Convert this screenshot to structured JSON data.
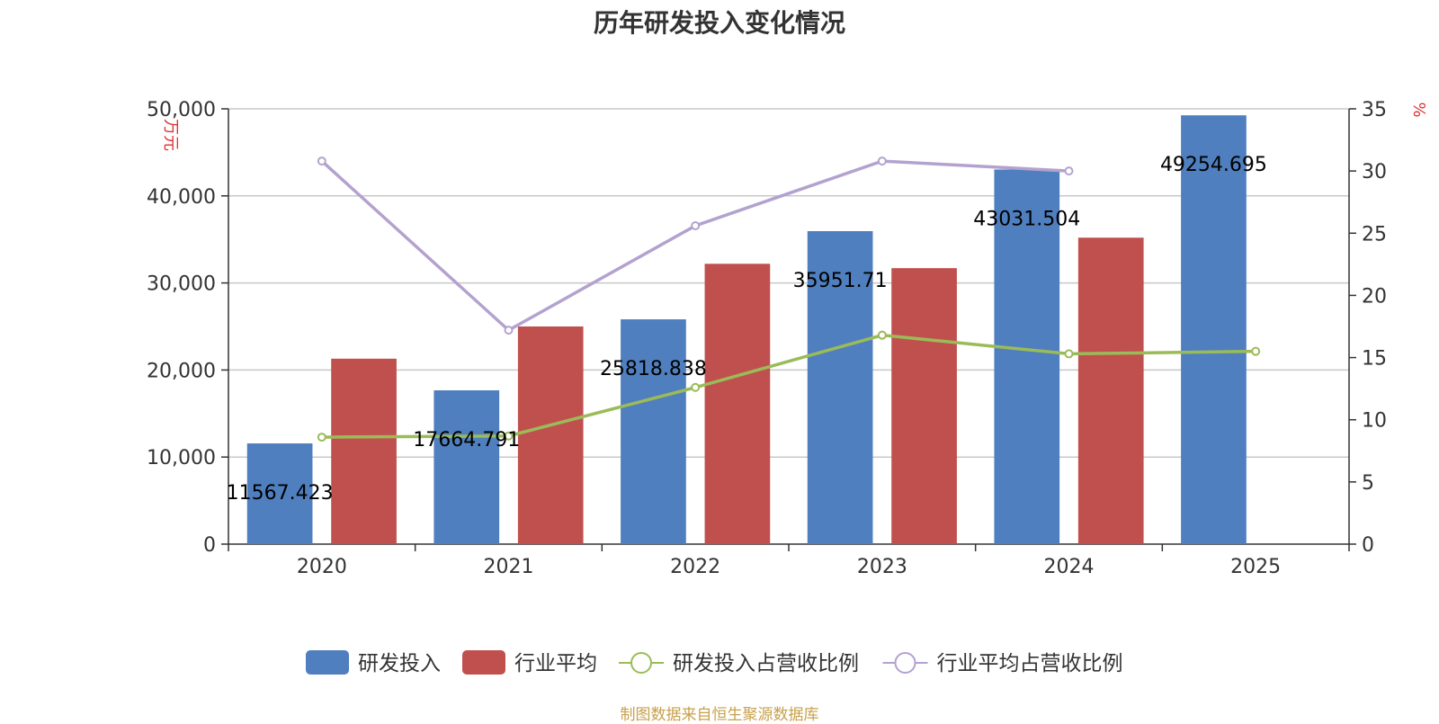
{
  "chart_data": {
    "type": "bar",
    "title": "历年研发投入变化情况",
    "categories": [
      "2020",
      "2021",
      "2022",
      "2023",
      "2024",
      "2025"
    ],
    "left_axis": {
      "unit": "万元",
      "ylim": [
        0,
        50000
      ],
      "ticks": [
        "0",
        "10,000",
        "20,000",
        "30,000",
        "40,000",
        "50,000"
      ]
    },
    "right_axis": {
      "unit": "%",
      "ylim": [
        0,
        35
      ],
      "ticks": [
        "0",
        "5",
        "10",
        "15",
        "20",
        "25",
        "30",
        "35"
      ]
    },
    "series": [
      {
        "name": "研发投入",
        "type": "bar",
        "axis": "left",
        "color": "#4f7fbe",
        "values": [
          11567.423,
          17664.791,
          25818.838,
          35951.71,
          43031.504,
          49254.695
        ],
        "labels": [
          "11567.423",
          "17664.791",
          "25818.838",
          "35951.71",
          "43031.504",
          "49254.695"
        ]
      },
      {
        "name": "行业平均",
        "type": "bar",
        "axis": "left",
        "color": "#c0504d",
        "values": [
          21300,
          25000,
          32200,
          31700,
          35200,
          null
        ]
      },
      {
        "name": "研发投入占营收比例",
        "type": "line",
        "axis": "right",
        "color": "#9bbb59",
        "values": [
          8.6,
          8.7,
          12.6,
          16.8,
          15.3,
          15.5
        ]
      },
      {
        "name": "行业平均占营收比例",
        "type": "line",
        "axis": "right",
        "color": "#b3a2cf",
        "values": [
          30.8,
          17.2,
          25.6,
          30.8,
          30.0,
          null
        ]
      }
    ],
    "legend": {
      "position": "bottom"
    },
    "grid": true
  },
  "source_note": "制图数据来自恒生聚源数据库"
}
